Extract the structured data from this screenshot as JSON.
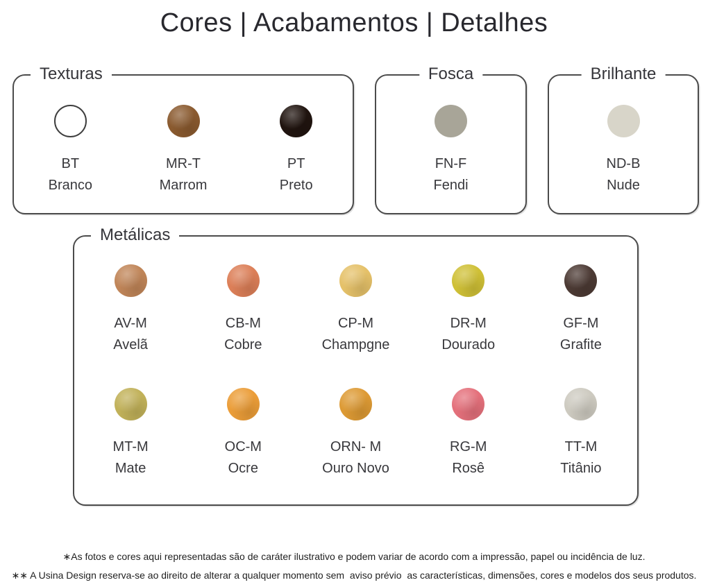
{
  "title": "Cores | Acabamentos | Detalhes",
  "sections": [
    {
      "label": "Texturas",
      "swatches": [
        {
          "code": "BT",
          "name": "Branco",
          "color": "#ffffff",
          "ring": true
        },
        {
          "code": "MR-T",
          "name": "Marrom",
          "color": "#8a5a2f",
          "metallic": true
        },
        {
          "code": "PT",
          "name": "Preto",
          "color": "#20140f",
          "metallic": true
        }
      ]
    },
    {
      "label": "Fosca",
      "swatches": [
        {
          "code": "FN-F",
          "name": "Fendi",
          "color": "#a8a598"
        }
      ]
    },
    {
      "label": "Brilhante",
      "swatches": [
        {
          "code": "ND-B",
          "name": "Nude",
          "color": "#d8d5c9"
        }
      ]
    },
    {
      "label": "Metálicas",
      "per_row": 5,
      "swatches": [
        {
          "code": "AV-M",
          "name": "Avelã",
          "color": "#c08558",
          "metallic": true
        },
        {
          "code": "CB-M",
          "name": "Cobre",
          "color": "#dc7f58",
          "metallic": true
        },
        {
          "code": "CP-M",
          "name": "Champgne",
          "color": "#e5c169",
          "metallic": true
        },
        {
          "code": "DR-M",
          "name": "Dourado",
          "color": "#cfc036",
          "metallic": true
        },
        {
          "code": "GF-M",
          "name": "Grafite",
          "color": "#4c3a34",
          "metallic": true
        },
        {
          "code": "MT-M",
          "name": "Mate",
          "color": "#c1b159",
          "metallic": true
        },
        {
          "code": "OC-M",
          "name": "Ocre",
          "color": "#eb9d38",
          "metallic": true
        },
        {
          "code": "ORN- M",
          "name": "Ouro Novo",
          "color": "#dd9a34",
          "metallic": true
        },
        {
          "code": "RG-M",
          "name": "Rosê",
          "color": "#e4707b",
          "metallic": true
        },
        {
          "code": "TT-M",
          "name": "Titânio",
          "color": "#cdcac0",
          "metallic": true
        }
      ]
    }
  ],
  "footnotes": [
    "∗As fotos e cores aqui representadas são de caráter ilustrativo e podem variar de acordo com a impressão, papel ou incidência de luz.",
    "∗∗ A Usina Design reserva-se ao direito de alterar a qualquer momento sem  aviso prévio  as características, dimensões, cores e modelos dos seus produtos."
  ]
}
